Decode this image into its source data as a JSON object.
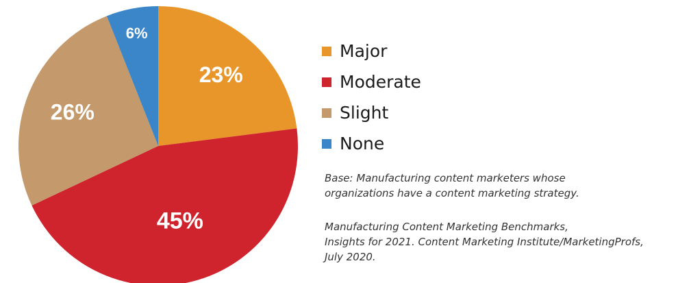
{
  "chart_data": {
    "type": "pie",
    "categories": [
      "Major",
      "Moderate",
      "Slight",
      "None"
    ],
    "values": [
      23,
      45,
      26,
      6
    ],
    "value_labels": [
      "23%",
      "45%",
      "26%",
      "6%"
    ],
    "colors": [
      "#e8962a",
      "#cf232d",
      "#c49a6c",
      "#3a86c8"
    ],
    "start_angle_deg": 0,
    "direction": "clockwise",
    "legend": "right"
  },
  "legend": {
    "items": [
      {
        "label": "Major",
        "color": "#e8962a"
      },
      {
        "label": "Moderate",
        "color": "#cf232d"
      },
      {
        "label": "Slight",
        "color": "#c49a6c"
      },
      {
        "label": "None",
        "color": "#3a86c8"
      }
    ]
  },
  "notes": {
    "base_lines": [
      "Base: Manufacturing content marketers whose",
      "organizations have a content marketing strategy."
    ],
    "source_lines": [
      "Manufacturing Content Marketing Benchmarks,",
      "Insights for 2021. Content Marketing Institute/MarketingProfs,",
      "July 2020."
    ]
  }
}
